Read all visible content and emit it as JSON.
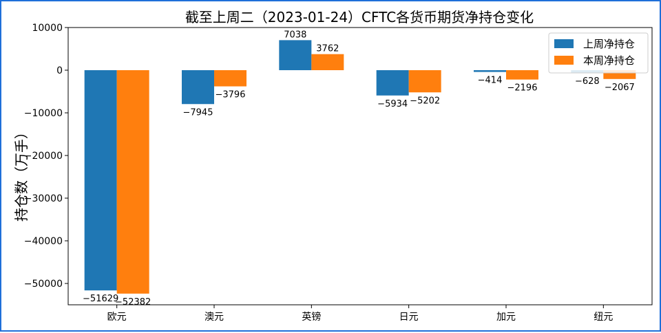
{
  "chart_data": {
    "type": "bar",
    "title": "截至上周二（2023-01-24）CFTC各货币期货净持仓变化",
    "xlabel": "",
    "ylabel": "持仓数（万手）",
    "categories": [
      "欧元",
      "澳元",
      "英镑",
      "日元",
      "加元",
      "纽元"
    ],
    "series": [
      {
        "name": "上周净持仓",
        "color": "#1f77b4",
        "values": [
          -51629,
          -7945,
          7038,
          -5934,
          -414,
          -628
        ]
      },
      {
        "name": "本周净持仓",
        "color": "#ff7f0e",
        "values": [
          -52382,
          -3796,
          3762,
          -5202,
          -2196,
          -2067
        ]
      }
    ],
    "ylim": [
      -55000,
      10000
    ],
    "yticks": [
      10000,
      0,
      -10000,
      -20000,
      -30000,
      -40000,
      -50000
    ],
    "legend_position": "top-right",
    "grid": false
  }
}
